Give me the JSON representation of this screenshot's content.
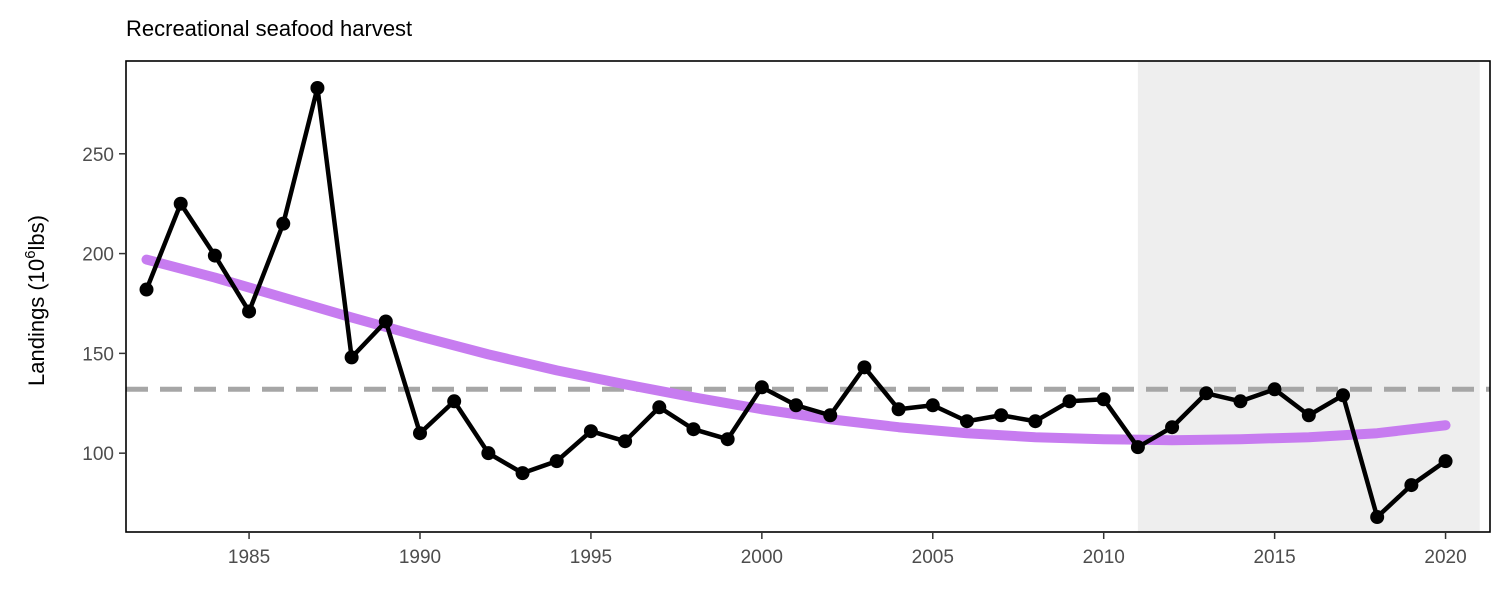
{
  "chart_data": {
    "type": "line",
    "title": "Recreational seafood harvest",
    "ylabel": {
      "prefix": "Landings (10",
      "superscript": "6",
      "suffix": "lbs)"
    },
    "xlabel": "",
    "xlim": [
      1981.4,
      2021.3
    ],
    "ylim": [
      60.5,
      296.5
    ],
    "x_ticks": [
      1985,
      1990,
      1995,
      2000,
      2005,
      2010,
      2015,
      2020
    ],
    "y_ticks": [
      100,
      150,
      200,
      250
    ],
    "grid": false,
    "legend": "none",
    "series": [
      {
        "x": [
          1982,
          1983,
          1984,
          1985,
          1986,
          1987,
          1988,
          1989,
          1990,
          1991,
          1992,
          1993,
          1994,
          1995,
          1996,
          1997,
          1998,
          1999,
          2000,
          2001,
          2002,
          2003,
          2004,
          2005,
          2006,
          2007,
          2008,
          2009,
          2010,
          2011,
          2012,
          2013,
          2014,
          2015,
          2016,
          2017,
          2018,
          2019,
          2020
        ],
        "values": [
          182,
          225,
          199,
          171,
          215,
          283,
          148,
          166,
          110,
          126,
          100,
          90,
          96,
          111,
          106,
          123,
          112,
          107,
          133,
          124,
          119,
          143,
          122,
          124,
          116,
          119,
          116,
          126,
          127,
          103,
          113,
          130,
          126,
          132,
          119,
          129,
          68,
          84,
          96
        ],
        "color": "#000000"
      }
    ],
    "trend": {
      "x": [
        1982,
        1984,
        1986,
        1988,
        1990,
        1992,
        1994,
        1996,
        1998,
        2000,
        2002,
        2004,
        2006,
        2008,
        2010,
        2012,
        2014,
        2016,
        2018,
        2020
      ],
      "values": [
        197,
        188,
        178,
        168,
        158.5,
        149.5,
        141.5,
        134.5,
        128,
        122,
        117,
        113,
        110,
        108,
        107,
        106.5,
        107,
        108,
        110,
        114
      ],
      "color": "#c77cf0"
    },
    "mean_line": {
      "value": 132,
      "color": "#a6a6a6"
    },
    "shaded_region": {
      "x": [
        2011,
        2021
      ],
      "color": "#eeeeee"
    }
  }
}
